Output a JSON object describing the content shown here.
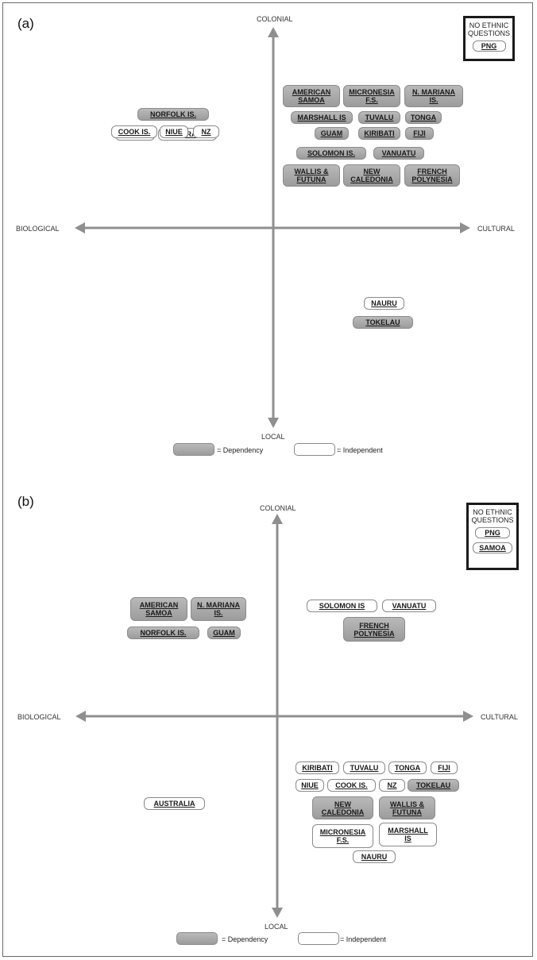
{
  "panels": [
    {
      "label": "(a)",
      "axes": {
        "top": "COLONIAL",
        "bottom": "LOCAL",
        "left": "BIOLOGICAL",
        "right": "CULTURAL"
      },
      "no_ethnic": {
        "title": "NO ETHNIC\nQUESTIONS",
        "items": [
          "PNG"
        ]
      },
      "legend": {
        "dependency": "= Dependency",
        "independent": "= Independent"
      },
      "nodes": [
        {
          "name": "NORFOLK IS.",
          "type": "dependency"
        },
        {
          "name": "SAMOA",
          "type": "independent"
        },
        {
          "name": "AUSTRALIA",
          "type": "independent"
        },
        {
          "name": "COOK IS.",
          "type": "independent"
        },
        {
          "name": "NIUE",
          "type": "independent"
        },
        {
          "name": "NZ",
          "type": "independent"
        },
        {
          "name": "AMERICAN\nSAMOA",
          "type": "dependency"
        },
        {
          "name": "MICRONESIA\nF.S.",
          "type": "dependency"
        },
        {
          "name": "N. MARIANA\nIS.",
          "type": "dependency"
        },
        {
          "name": "MARSHALL IS",
          "type": "dependency"
        },
        {
          "name": "TUVALU",
          "type": "dependency"
        },
        {
          "name": "TONGA",
          "type": "dependency"
        },
        {
          "name": "GUAM",
          "type": "dependency"
        },
        {
          "name": "KIRIBATI",
          "type": "dependency"
        },
        {
          "name": "FIJI",
          "type": "dependency"
        },
        {
          "name": "SOLOMON IS.",
          "type": "dependency"
        },
        {
          "name": "VANUATU",
          "type": "dependency"
        },
        {
          "name": "WALLIS &\nFUTUNA",
          "type": "dependency"
        },
        {
          "name": "NEW\nCALEDONIA",
          "type": "dependency"
        },
        {
          "name": "FRENCH\nPOLYNESIA",
          "type": "dependency"
        },
        {
          "name": "NAURU",
          "type": "independent"
        },
        {
          "name": "TOKELAU",
          "type": "dependency"
        }
      ]
    },
    {
      "label": "(b)",
      "axes": {
        "top": "COLONIAL",
        "bottom": "LOCAL",
        "left": "BIOLOGICAL",
        "right": "CULTURAL"
      },
      "no_ethnic": {
        "title": "NO ETHNIC\nQUESTIONS",
        "items": [
          "PNG",
          "SAMOA"
        ]
      },
      "legend": {
        "dependency": "= Dependency",
        "independent": "= Independent"
      },
      "nodes": [
        {
          "name": "AMERICAN\nSAMOA",
          "type": "dependency"
        },
        {
          "name": "N. MARIANA\nIS.",
          "type": "dependency"
        },
        {
          "name": "NORFOLK IS.",
          "type": "dependency"
        },
        {
          "name": "GUAM",
          "type": "dependency"
        },
        {
          "name": "SOLOMON IS",
          "type": "independent"
        },
        {
          "name": "VANUATU",
          "type": "independent"
        },
        {
          "name": "FRENCH\nPOLYNESIA",
          "type": "dependency"
        },
        {
          "name": "KIRIBATI",
          "type": "independent"
        },
        {
          "name": "TUVALU",
          "type": "independent"
        },
        {
          "name": "TONGA",
          "type": "independent"
        },
        {
          "name": "FIJI",
          "type": "independent"
        },
        {
          "name": "NIUE",
          "type": "independent"
        },
        {
          "name": "COOK IS.",
          "type": "independent"
        },
        {
          "name": "NZ",
          "type": "independent"
        },
        {
          "name": "TOKELAU",
          "type": "dependency"
        },
        {
          "name": "NEW\nCALEDONIA",
          "type": "dependency"
        },
        {
          "name": "WALLIS &\nFUTUNA",
          "type": "dependency"
        },
        {
          "name": "MICRONESIA\nF.S.",
          "type": "independent"
        },
        {
          "name": "MARSHALL\nIS",
          "type": "independent"
        },
        {
          "name": "NAURU",
          "type": "independent"
        },
        {
          "name": "AUSTRALIA",
          "type": "independent"
        }
      ]
    }
  ]
}
